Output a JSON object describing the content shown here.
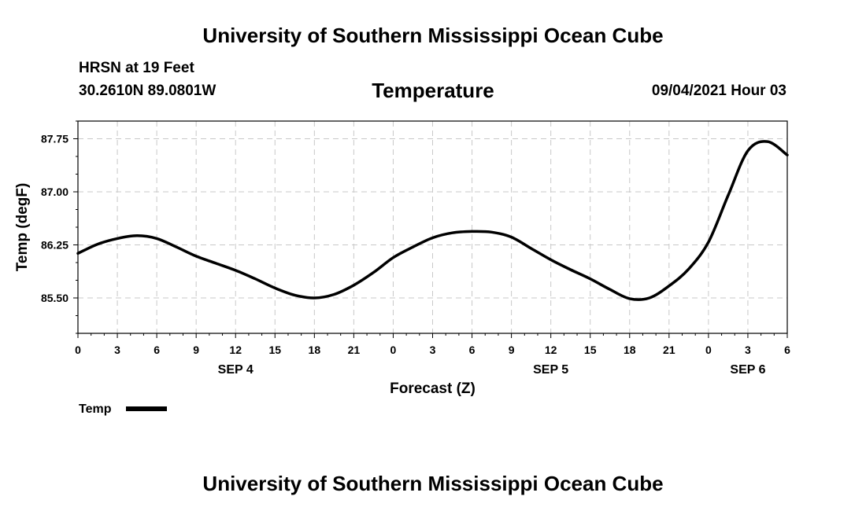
{
  "header": {
    "top_title": "University of Southern Mississippi Ocean Cube",
    "station": "HRSN at 19 Feet",
    "coordinates": "30.2610N  89.0801W",
    "chart_title": "Temperature",
    "datetime": "09/04/2021 Hour 03",
    "bottom_title": "University of Southern Mississippi Ocean Cube"
  },
  "chart_data": {
    "type": "line",
    "title": "Temperature",
    "xlabel": "Forecast (Z)",
    "ylabel": "Temp (degF)",
    "ylim": [
      85.0,
      88.0
    ],
    "xlim": [
      0,
      54
    ],
    "yticks": [
      "85.50",
      "86.25",
      "87.00",
      "87.75"
    ],
    "ytick_values": [
      85.5,
      86.25,
      87.0,
      87.75
    ],
    "xticks": [
      "0",
      "3",
      "6",
      "9",
      "12",
      "15",
      "18",
      "21",
      "0",
      "3",
      "6",
      "9",
      "12",
      "15",
      "18",
      "21",
      "0",
      "3",
      "6"
    ],
    "day_labels": [
      {
        "label": "SEP 4",
        "hour": 12
      },
      {
        "label": "SEP 5",
        "hour": 36
      },
      {
        "label": "SEP 6",
        "hour": 51
      }
    ],
    "grid": true,
    "legend": {
      "position": "bottom-left",
      "entries": [
        "Temp"
      ]
    },
    "series": [
      {
        "name": "Temp",
        "color": "#000000",
        "x": [
          0,
          1.5,
          3,
          4.5,
          6,
          7.5,
          9,
          10.5,
          12,
          13.5,
          15,
          16.5,
          18,
          19.5,
          21,
          22.5,
          24,
          25.5,
          27,
          28.5,
          30,
          31.5,
          33,
          34.5,
          36,
          37.5,
          39,
          40.5,
          42,
          43.5,
          45,
          46.5,
          48,
          49.5,
          51,
          52.5,
          54
        ],
        "values": [
          86.13,
          86.26,
          86.34,
          86.38,
          86.34,
          86.22,
          86.09,
          85.99,
          85.89,
          85.77,
          85.64,
          85.54,
          85.5,
          85.55,
          85.68,
          85.86,
          86.07,
          86.22,
          86.35,
          86.42,
          86.44,
          86.43,
          86.36,
          86.2,
          86.04,
          85.9,
          85.77,
          85.62,
          85.49,
          85.5,
          85.67,
          85.91,
          86.29,
          86.95,
          87.58,
          87.71,
          87.52
        ]
      }
    ]
  }
}
